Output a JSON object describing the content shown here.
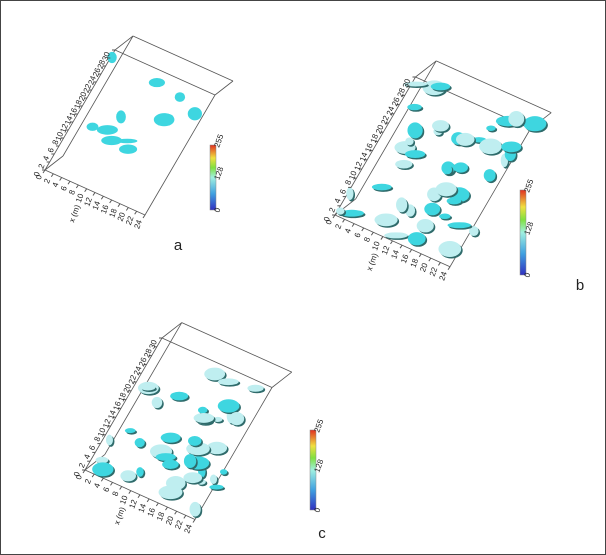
{
  "panels": [
    {
      "label": "a",
      "x_title": "x (m)",
      "x_ticks": [
        0,
        2,
        4,
        6,
        8,
        10,
        12,
        14,
        16,
        18,
        20,
        22,
        24
      ],
      "y_ticks": [
        0,
        2,
        4,
        6,
        8,
        10,
        12,
        14,
        16,
        18,
        20,
        22,
        24,
        26,
        28,
        30
      ],
      "colorbar": [
        "0",
        "128",
        "255"
      ]
    },
    {
      "label": "b",
      "x_title": "x (m)",
      "x_ticks": [
        0,
        2,
        4,
        6,
        8,
        10,
        12,
        14,
        16,
        18,
        20,
        22,
        24
      ],
      "y_ticks": [
        0,
        2,
        4,
        6,
        8,
        10,
        12,
        14,
        16,
        18,
        20,
        22,
        24,
        26,
        28,
        30
      ],
      "colorbar": [
        "0",
        "128",
        "255"
      ]
    },
    {
      "label": "c",
      "x_title": "x (m)",
      "x_ticks": [
        0,
        2,
        4,
        6,
        8,
        10,
        12,
        14,
        16,
        18,
        20,
        22,
        24
      ],
      "y_ticks": [
        0,
        2,
        4,
        6,
        8,
        10,
        12,
        14,
        16,
        18,
        20,
        22,
        24,
        26,
        28,
        30
      ],
      "colorbar": [
        "0",
        "128",
        "255"
      ]
    }
  ]
}
